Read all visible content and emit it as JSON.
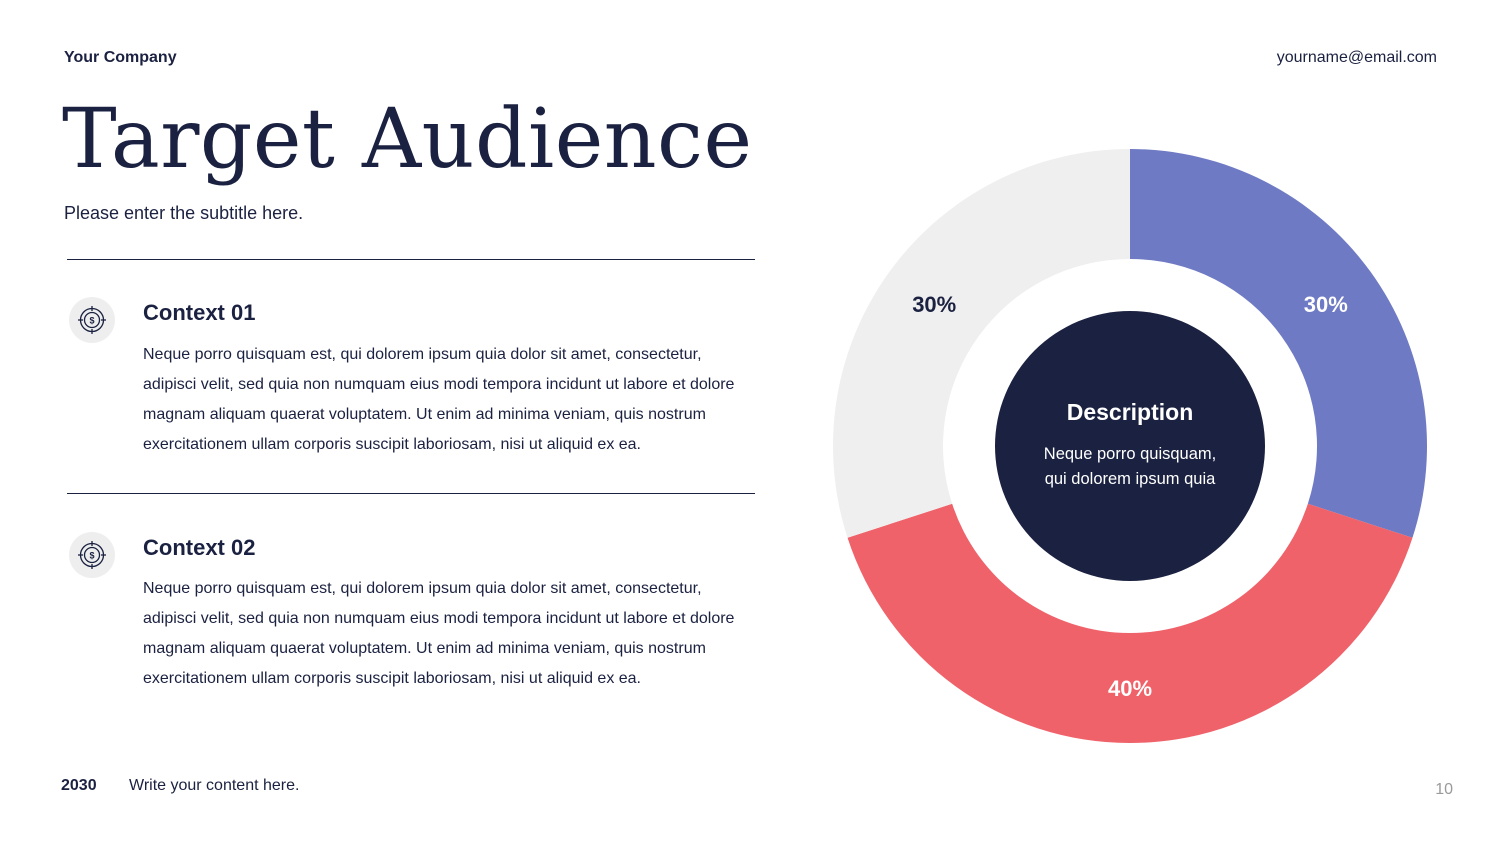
{
  "header": {
    "company": "Your Company",
    "email": "yourname@email.com"
  },
  "title": "Target Audience",
  "subtitle": "Please enter the subtitle here.",
  "contexts": [
    {
      "icon": "target-dollar-icon",
      "title": "Context 01",
      "body": "Neque porro quisquam est, qui dolorem ipsum quia dolor sit amet, consectetur, adipisci velit, sed quia non numquam eius modi tempora incidunt ut labore et dolore magnam aliquam quaerat voluptatem. Ut enim ad minima veniam, quis nostrum exercitationem ullam corporis suscipit laboriosam, nisi ut aliquid ex ea."
    },
    {
      "icon": "target-dollar-icon",
      "title": "Context 02",
      "body": "Neque porro quisquam est, qui dolorem ipsum quia dolor sit amet, consectetur, adipisci velit, sed quia non numquam eius modi tempora incidunt ut labore et dolore magnam aliquam quaerat voluptatem. Ut enim ad minima veniam, quis nostrum exercitationem ullam corporis suscipit laboriosam, nisi ut aliquid ex ea."
    }
  ],
  "footer": {
    "year": "2030",
    "text": "Write your content here.",
    "page": "10"
  },
  "chart_data": {
    "type": "pie",
    "variant": "donut",
    "slices": [
      {
        "label": "30%",
        "value": 30,
        "color": "#6f7ac4",
        "label_color": "#ffffff"
      },
      {
        "label": "40%",
        "value": 40,
        "color": "#f0626a",
        "label_color": "#ffffff"
      },
      {
        "label": "30%",
        "value": 30,
        "color": "#efefef",
        "label_color": "#1b2140"
      }
    ],
    "center": {
      "title": "Description",
      "lines": [
        "Neque porro quisquam,",
        "qui dolorem ipsum quia"
      ],
      "color": "#1b2140"
    }
  },
  "colors": {
    "navy": "#1b2140",
    "badge_bg": "#eeeeef",
    "muted": "#9a9a9a"
  }
}
